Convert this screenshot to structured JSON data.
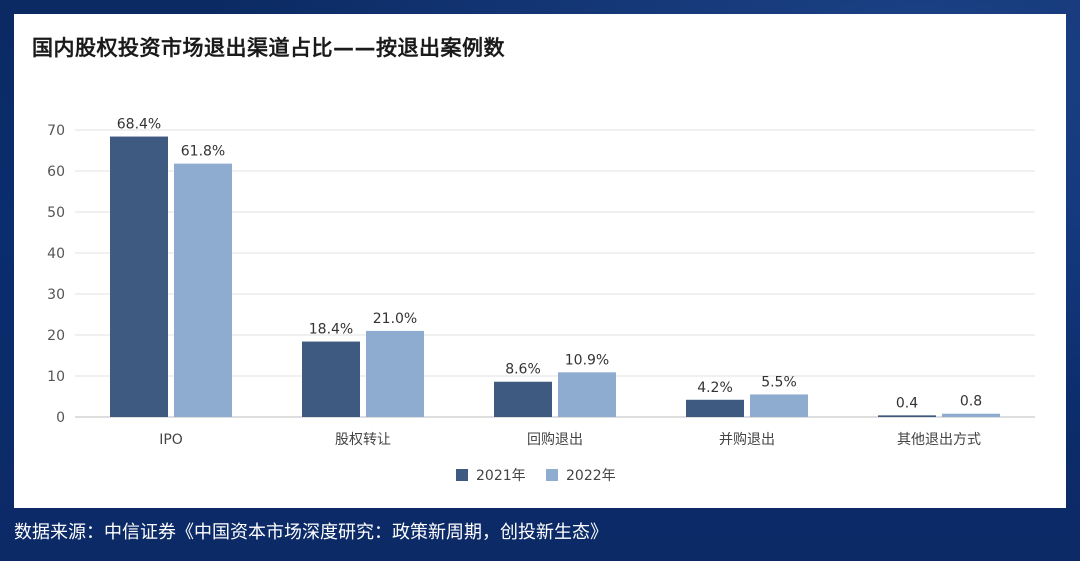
{
  "source_text": "数据来源：中信证券《中国资本市场深度研究：政策新周期，创投新生态》",
  "chart_data": {
    "type": "bar",
    "title": "国内股权投资市场退出渠道占比——按退出案例数",
    "categories": [
      "IPO",
      "股权转让",
      "回购退出",
      "并购退出",
      "其他退出方式"
    ],
    "series": [
      {
        "name": "2021年",
        "values": [
          68.4,
          18.4,
          8.6,
          4.2,
          0.4
        ],
        "labels": [
          "68.4%",
          "18.4%",
          "8.6%",
          "4.2%",
          "0.4"
        ],
        "color": "#3e5a80"
      },
      {
        "name": "2022年",
        "values": [
          61.8,
          21.0,
          10.9,
          5.5,
          0.8
        ],
        "labels": [
          "61.8%",
          "21.0%",
          "10.9%",
          "5.5%",
          "0.8"
        ],
        "color": "#8eabd0"
      }
    ],
    "yticks": [
      0,
      10,
      20,
      30,
      40,
      50,
      60,
      70
    ],
    "ylim": [
      0,
      70
    ],
    "grid": true,
    "legend": "bottom"
  }
}
